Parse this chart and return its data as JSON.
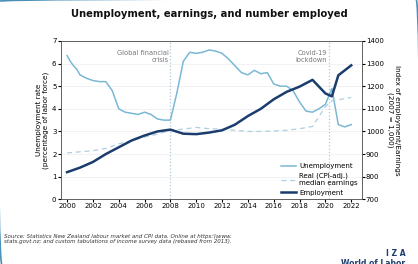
{
  "title": "Unemployment, earnings, and number employed",
  "ylabel_left": "Unemployment rate\n(percentage of labor force)",
  "ylabel_right": "Index of employment/Earnings\n(2007 = 1,000)",
  "ylim_left": [
    0,
    7
  ],
  "ylim_right": [
    700,
    1400
  ],
  "yticks_left": [
    0,
    1,
    2,
    3,
    4,
    5,
    6,
    7
  ],
  "yticks_right": [
    700,
    800,
    900,
    1000,
    1100,
    1200,
    1300,
    1400
  ],
  "xlim": [
    1999.5,
    2022.8
  ],
  "xticks": [
    2000,
    2002,
    2004,
    2006,
    2008,
    2010,
    2012,
    2014,
    2016,
    2018,
    2020,
    2022
  ],
  "vline1_x": 2008.0,
  "vline1_label": "Global financial\ncrisis",
  "vline2_x": 2020.25,
  "vline2_label": "Covid-19\nlockdown",
  "source_text": "Source: Statistics New Zealand labour market and CPI data. Online at https:\\\\www.\nstats.govt.nz; and custom tabulations of income survey data (rebased from 2013).",
  "iza_text": "I Z A",
  "wol_text": "World of Labor",
  "unemp_color": "#7ab8d4",
  "earn_color": "#aecfe0",
  "empl_color": "#1b3d6e",
  "vline_color": "#a0bfd0",
  "border_color": "#4a90b8",
  "unemployment": {
    "years": [
      2000.0,
      2000.25,
      2000.5,
      2000.75,
      2001.0,
      2001.5,
      2002.0,
      2002.5,
      2003.0,
      2003.5,
      2004.0,
      2004.5,
      2005.0,
      2005.5,
      2006.0,
      2006.5,
      2007.0,
      2007.5,
      2008.0,
      2008.5,
      2009.0,
      2009.5,
      2010.0,
      2010.5,
      2011.0,
      2011.5,
      2012.0,
      2012.5,
      2013.0,
      2013.5,
      2014.0,
      2014.5,
      2015.0,
      2015.5,
      2016.0,
      2016.5,
      2017.0,
      2017.5,
      2018.0,
      2018.5,
      2019.0,
      2019.5,
      2020.0,
      2020.5,
      2021.0,
      2021.5,
      2022.0
    ],
    "values": [
      6.35,
      6.1,
      5.9,
      5.75,
      5.5,
      5.35,
      5.25,
      5.2,
      5.2,
      4.8,
      4.0,
      3.85,
      3.8,
      3.75,
      3.85,
      3.75,
      3.55,
      3.5,
      3.5,
      4.7,
      6.1,
      6.5,
      6.45,
      6.5,
      6.6,
      6.55,
      6.45,
      6.2,
      5.9,
      5.6,
      5.5,
      5.7,
      5.55,
      5.6,
      5.1,
      5.0,
      5.0,
      4.8,
      4.3,
      3.9,
      3.85,
      4.0,
      4.2,
      4.9,
      3.3,
      3.2,
      3.3
    ]
  },
  "earnings": {
    "years": [
      2000.0,
      2001.0,
      2002.0,
      2003.0,
      2004.0,
      2005.0,
      2006.0,
      2007.0,
      2008.0,
      2009.0,
      2010.0,
      2011.0,
      2012.0,
      2013.0,
      2014.0,
      2015.0,
      2016.0,
      2017.0,
      2018.0,
      2019.0,
      2020.0,
      2020.5,
      2021.0,
      2021.5,
      2022.0
    ],
    "values": [
      2.05,
      2.1,
      2.15,
      2.25,
      2.45,
      2.6,
      2.75,
      2.88,
      3.05,
      3.1,
      3.18,
      3.12,
      3.1,
      3.05,
      3.0,
      3.0,
      3.02,
      3.05,
      3.12,
      3.22,
      4.1,
      4.35,
      4.4,
      4.45,
      4.5
    ]
  },
  "employment": {
    "years": [
      2000.0,
      2001.0,
      2002.0,
      2003.0,
      2004.0,
      2005.0,
      2006.0,
      2007.0,
      2008.0,
      2009.0,
      2010.0,
      2011.0,
      2012.0,
      2013.0,
      2014.0,
      2015.0,
      2016.0,
      2017.0,
      2018.0,
      2019.0,
      2020.0,
      2020.5,
      2021.0,
      2021.5,
      2022.0
    ],
    "values": [
      820,
      840,
      865,
      900,
      930,
      960,
      982,
      1000,
      1008,
      990,
      988,
      995,
      1005,
      1030,
      1068,
      1100,
      1142,
      1175,
      1198,
      1228,
      1168,
      1155,
      1248,
      1270,
      1292
    ]
  }
}
